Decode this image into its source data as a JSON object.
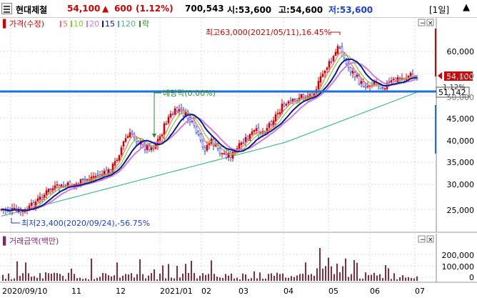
{
  "header": {
    "stock_name": "현대제철",
    "price": "54,100",
    "change_arrow": "▲",
    "change": "600",
    "change_pct": "(1.12%)",
    "volume": "700,543",
    "open": "시:53,600",
    "high": "고:54,600",
    "low": "저:53,600",
    "period_button": "[1일]",
    "up_color": "#d40000",
    "down_color": "#1d3fd8"
  },
  "price_panel": {
    "legend": {
      "marker": "▌",
      "title": "가격(수정)",
      "ma": [
        {
          "label": "5",
          "color": "#ff6a6a"
        },
        {
          "label": "10",
          "color": "#7cd32c"
        },
        {
          "label": "20",
          "color": "#d27ad8"
        },
        {
          "label": "15",
          "color": "#0b1a9a"
        },
        {
          "label": "120",
          "color": "#48b88c"
        },
        {
          "label": "락",
          "color": "#2a8c2a"
        }
      ]
    },
    "y_ticks": [
      "60,000",
      "55,000",
      "50,000",
      "45,000",
      "40,000",
      "35,000",
      "30,000",
      "25,000"
    ],
    "current_price_label": "54,100",
    "hline_label": "51,142",
    "annotations": {
      "high": "최고63,000(2021/05/11),16.45%",
      "low": "최저23,400(2020/09/24),-56.75%",
      "dividend": "배당락(0.00%)",
      "partial_pct": "1.12%"
    }
  },
  "volume_panel": {
    "title": "거래금액(백만)",
    "y_ticks": [
      "200,000",
      "100,000",
      "0"
    ]
  },
  "x_axis": {
    "labels": [
      "2020/09/10",
      "11",
      "12",
      "2021/01",
      "02",
      "03",
      "04",
      "05",
      "06",
      "07"
    ]
  },
  "window_buttons": {
    "minimize": "−",
    "close": "×"
  },
  "chart_data": {
    "type": "candlestick",
    "title": "현대제철 가격(수정)",
    "x_range": [
      "2020/09/10",
      "2021/07"
    ],
    "y_range": [
      21000,
      67000
    ],
    "key_points": [
      {
        "date": "2020/09/24",
        "value": 23400,
        "label": "최저"
      },
      {
        "date": "2021/05/11",
        "value": 63000,
        "label": "최고"
      },
      {
        "date": "current",
        "value": 54100,
        "label": "현재가"
      }
    ],
    "horizontal_line": 51142,
    "volume_ylim": [
      0,
      260000
    ]
  }
}
